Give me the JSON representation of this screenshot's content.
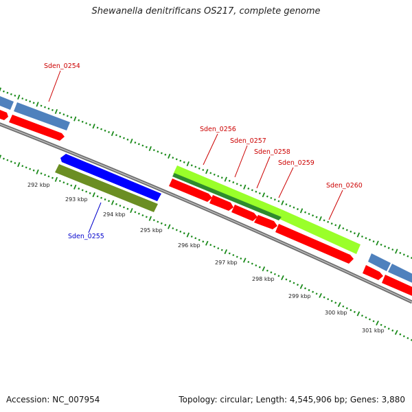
{
  "title": "Shewanella denitrificans OS217, complete genome",
  "footer": {
    "accession": "Accession: NC_007954",
    "summary": "Topology: circular; Length: 4,545,906 bp; Genes: 3,880"
  },
  "colors": {
    "forward_cds": "#ff0000",
    "forward_gene": "#4f81bd",
    "reverse_cds": "#0000ff",
    "reverse_gene": "#6b8e23",
    "highlight_light": "#9aff2a",
    "highlight_dark": "#2e8b2e",
    "backbone": "#808080",
    "ticks": "#1a8a1a",
    "label_forward": "#cc0000",
    "label_reverse": "#0000cc"
  },
  "kbp_labels": [
    {
      "text": "292 kbp"
    },
    {
      "text": "293 kbp"
    },
    {
      "text": "294 kbp"
    },
    {
      "text": "295 kbp"
    },
    {
      "text": "296 kbp"
    },
    {
      "text": "297 kbp"
    },
    {
      "text": "298 kbp"
    },
    {
      "text": "299 kbp"
    },
    {
      "text": "300 kbp"
    },
    {
      "text": "301 kbp"
    }
  ],
  "gene_labels": [
    {
      "text": "Sden_0254",
      "strand": "forward"
    },
    {
      "text": "Sden_0255",
      "strand": "reverse"
    },
    {
      "text": "Sden_0256",
      "strand": "forward"
    },
    {
      "text": "Sden_0257",
      "strand": "forward"
    },
    {
      "text": "Sden_0258",
      "strand": "forward"
    },
    {
      "text": "Sden_0259",
      "strand": "forward"
    },
    {
      "text": "Sden_0260",
      "strand": "forward"
    }
  ]
}
